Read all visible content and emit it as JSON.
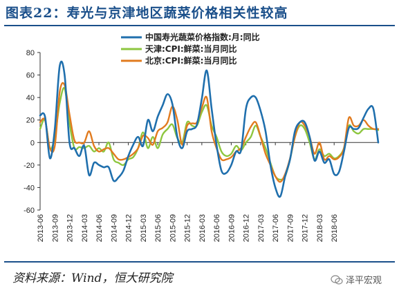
{
  "title": "图表22：寿光与京津地区蔬菜价格相关性较高",
  "source": "资料来源：Wind，恒大研究院",
  "watermark": "泽平宏观",
  "chart_data": {
    "type": "line",
    "ylim": [
      -60,
      80
    ],
    "yticks": [
      80,
      60,
      40,
      20,
      0,
      -20,
      -40,
      -60
    ],
    "xlabels": [
      "2013-06",
      "2013-09",
      "2013-12",
      "2014-03",
      "2014-06",
      "2014-09",
      "2014-12",
      "2015-03",
      "2015-06",
      "2015-09",
      "2015-12",
      "2016-03",
      "2016-06",
      "2016-09",
      "2016-12",
      "2017-03",
      "2017-06",
      "2017-09",
      "2017-12",
      "2018-03",
      "2018-06"
    ],
    "grid": false,
    "legend_position": "top-center",
    "series": [
      {
        "name": "中国寿光蔬菜价格指数:月:同比",
        "color": "#1f6fad",
        "values": [
          24,
          23,
          -14,
          12,
          68,
          60,
          0,
          -5,
          -12,
          -3,
          -29,
          -18,
          -20,
          -22,
          -22,
          -34,
          -31,
          -25,
          -12,
          -2,
          5,
          -3,
          20,
          10,
          23,
          33,
          43,
          34,
          5,
          -5,
          10,
          12,
          16,
          39,
          64,
          30,
          -2,
          -25,
          -27,
          -20,
          -8,
          -7,
          30,
          40,
          40,
          28,
          10,
          -20,
          -40,
          -48,
          -30,
          -15,
          10,
          18,
          18,
          5,
          -16,
          -8,
          -18,
          -15,
          -28,
          -26,
          -8,
          13,
          12,
          13,
          22,
          30,
          30,
          0
        ]
      },
      {
        "name": "天津:CPI:鲜菜:当月同比",
        "color": "#8dc63f",
        "values": [
          12,
          20,
          -5,
          5,
          35,
          48,
          17,
          -5,
          -4,
          -5,
          -3,
          -8,
          -5,
          -8,
          0,
          -15,
          -18,
          -20,
          -15,
          -13,
          -5,
          9,
          -5,
          5,
          -5,
          7,
          12,
          16,
          4,
          0,
          18,
          15,
          15,
          27,
          33,
          15,
          5,
          -8,
          -12,
          -10,
          -3,
          -7,
          0,
          5,
          15,
          5,
          -5,
          -18,
          -30,
          -33,
          -30,
          -15,
          5,
          15,
          12,
          0,
          -15,
          -6,
          -12,
          -10,
          -14,
          -12,
          -5,
          15,
          10,
          8,
          12,
          12,
          12,
          11
        ]
      },
      {
        "name": "北京:CPI:鲜菜:当月同比",
        "color": "#e17b1f",
        "values": [
          18,
          20,
          -5,
          -3,
          45,
          51,
          25,
          2,
          0,
          0,
          10,
          -3,
          -8,
          -6,
          -5,
          -10,
          -15,
          -15,
          -13,
          -10,
          -5,
          6,
          4,
          -2,
          10,
          13,
          18,
          32,
          20,
          -2,
          15,
          17,
          18,
          31,
          40,
          10,
          -5,
          -15,
          -15,
          -13,
          -8,
          -5,
          5,
          14,
          18,
          5,
          -10,
          -20,
          -30,
          -35,
          -28,
          -14,
          5,
          18,
          15,
          5,
          -10,
          0,
          -15,
          -12,
          -15,
          -13,
          -5,
          22,
          15,
          15,
          20,
          15,
          12,
          12
        ]
      }
    ]
  }
}
